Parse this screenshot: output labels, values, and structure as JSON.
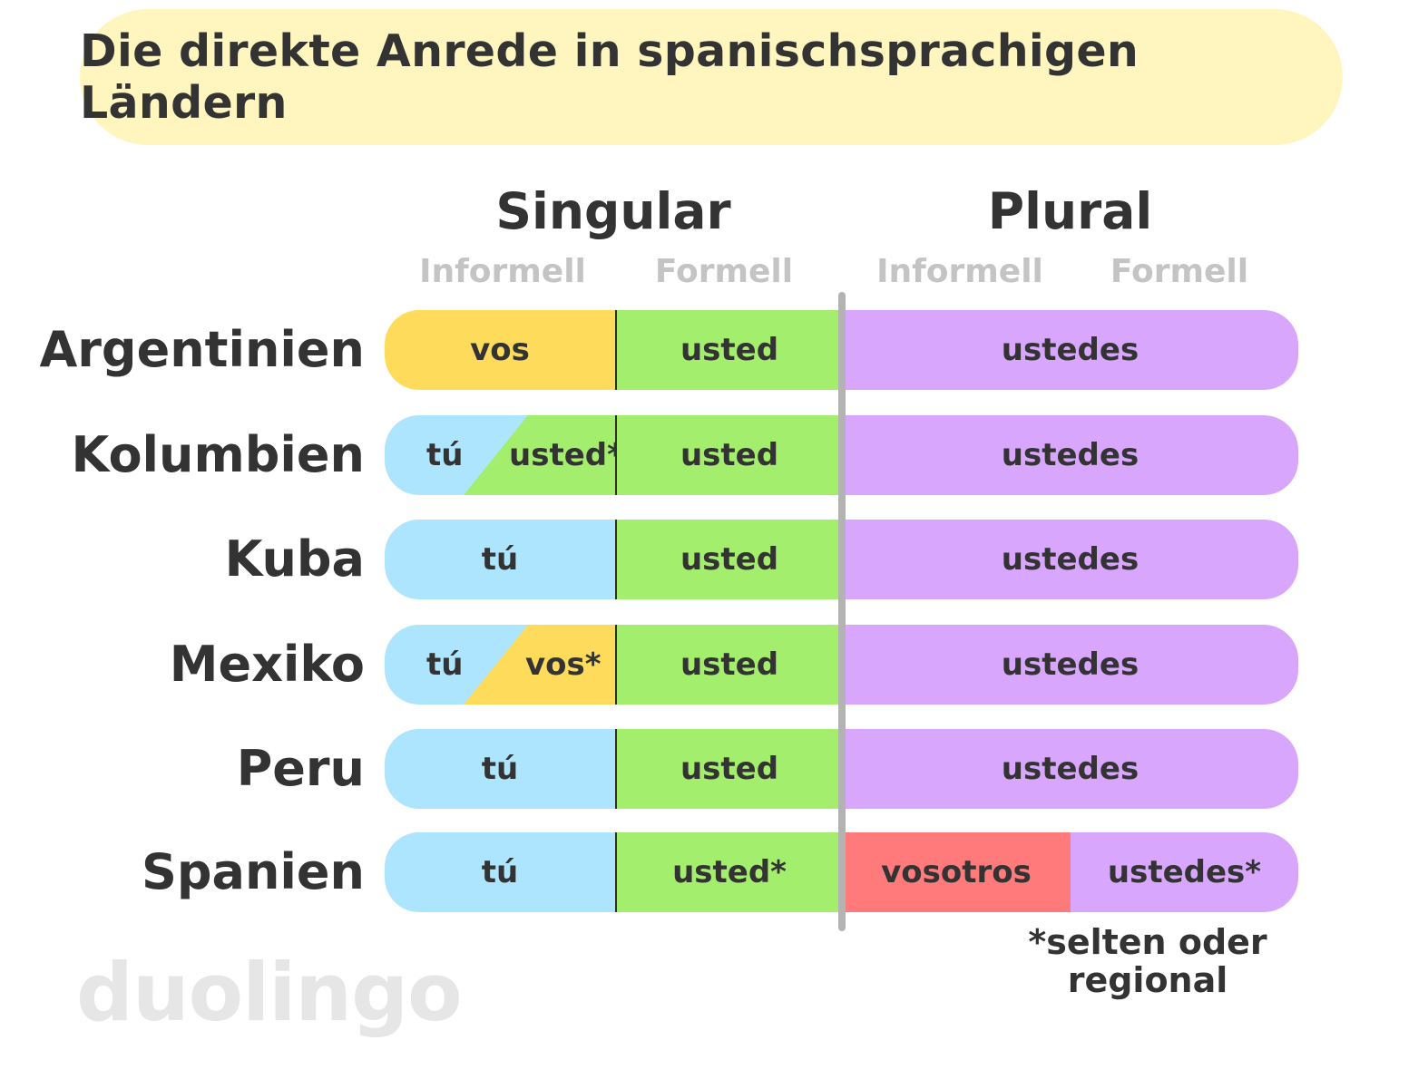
{
  "title": "Die direkte Anrede in spanischsprachigen Ländern",
  "headers": {
    "singular": "Singular",
    "plural": "Plural",
    "singular_informal": "Informell",
    "singular_formal": "Formell",
    "plural_informal": "Informell",
    "plural_formal": "Formell"
  },
  "rows": [
    {
      "country": "Argentinien",
      "informal": "vos",
      "formal": "usted",
      "plural": "ustedes"
    },
    {
      "country": "Kolumbien",
      "informal_a": "tú",
      "informal_b": "usted*",
      "formal": "usted",
      "plural": "ustedes"
    },
    {
      "country": "Kuba",
      "informal": "tú",
      "formal": "usted",
      "plural": "ustedes"
    },
    {
      "country": "Mexiko",
      "informal_a": "tú",
      "informal_b": "vos*",
      "formal": "usted",
      "plural": "ustedes"
    },
    {
      "country": "Peru",
      "informal": "tú",
      "formal": "usted",
      "plural": "ustedes"
    },
    {
      "country": "Spanien",
      "informal": "tú",
      "formal": "usted*",
      "plural_informal": "vosotros",
      "plural_formal": "ustedes*"
    }
  ],
  "footnote": {
    "line1": "*selten oder",
    "line2": "regional"
  },
  "logo": "duolingo",
  "colors": {
    "title_bg": "#fff6bf",
    "vos": "#ffdb5c",
    "tu": "#ace5fd",
    "usted": "#a4ee6e",
    "ustedes": "#d9a6fe",
    "vosotros": "#ff7b7b",
    "divider": "#b3b3b3"
  }
}
